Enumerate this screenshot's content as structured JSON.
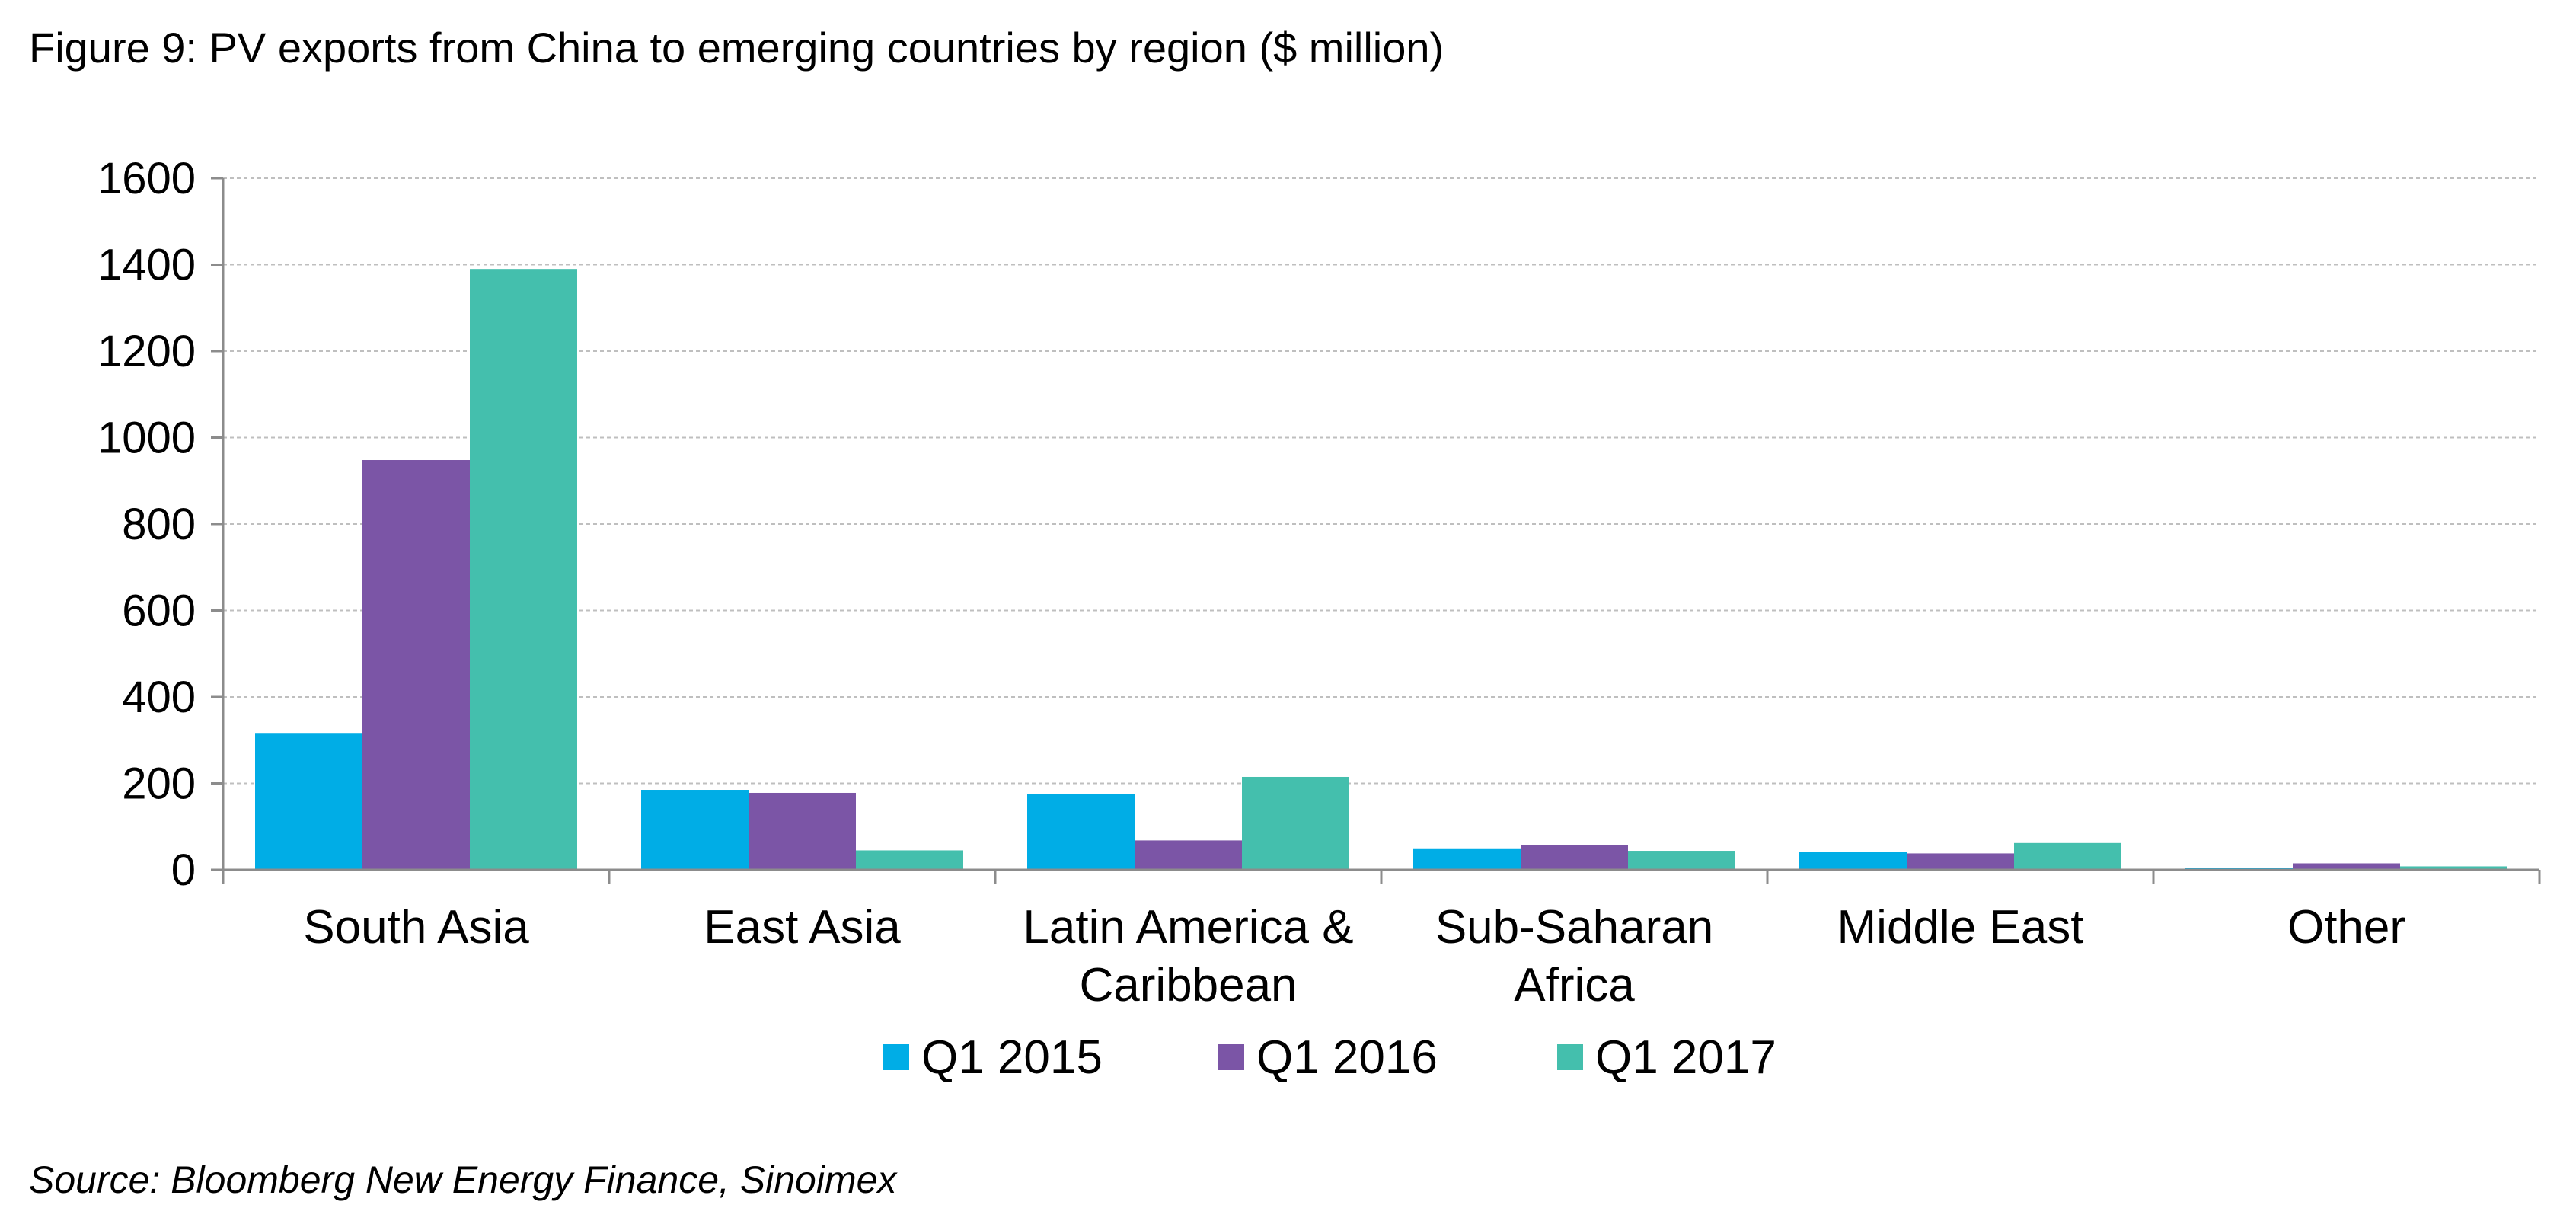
{
  "title": "Figure 9: PV exports from China to emerging countries by region ($ million)",
  "source": "Source: Bloomberg New Energy Finance, Sinoimex",
  "colors": {
    "Q1 2015": "#00ADE6",
    "Q1 2016": "#7B55A6",
    "Q1 2017": "#44BFAD",
    "grid": "#BFBFBF",
    "axis": "#8C8C8C"
  },
  "chart_data": {
    "type": "bar",
    "title": "Figure 9: PV exports from China to emerging countries by region ($ million)",
    "xlabel": "",
    "ylabel": "",
    "ylim": [
      0,
      1600
    ],
    "yticks": [
      0,
      200,
      400,
      600,
      800,
      1000,
      1200,
      1400,
      1600
    ],
    "grid": true,
    "legend_position": "bottom",
    "categories": [
      [
        "South Asia"
      ],
      [
        "East Asia"
      ],
      [
        "Latin America &",
        "Caribbean"
      ],
      [
        "Sub-Saharan",
        "Africa"
      ],
      [
        "Middle East"
      ],
      [
        "Other"
      ]
    ],
    "series": [
      {
        "name": "Q1 2015",
        "values": [
          315,
          185,
          175,
          48,
          42,
          5
        ]
      },
      {
        "name": "Q1 2016",
        "values": [
          948,
          178,
          68,
          58,
          38,
          15
        ]
      },
      {
        "name": "Q1 2017",
        "values": [
          1390,
          45,
          215,
          44,
          62,
          8
        ]
      }
    ]
  }
}
